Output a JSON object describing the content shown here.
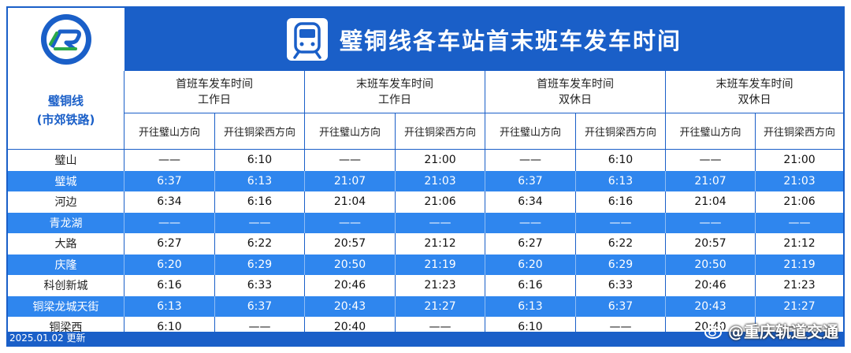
{
  "title": "璧铜线各车站首末班车发车时间",
  "line": {
    "name": "璧铜线",
    "sub": "(市郊铁路)"
  },
  "groups": [
    {
      "title": "首班车发车时间",
      "sub": "工作日"
    },
    {
      "title": "末班车发车时间",
      "sub": "工作日"
    },
    {
      "title": "首班车发车时间",
      "sub": "双休日"
    },
    {
      "title": "末班车发车时间",
      "sub": "双休日"
    }
  ],
  "directions": [
    "开往璧山方向",
    "开往铜梁西方向",
    "开往璧山方向",
    "开往铜梁西方向",
    "开往璧山方向",
    "开往铜梁西方向",
    "开往璧山方向",
    "开往铜梁西方向"
  ],
  "rows": [
    {
      "station": "璧山",
      "times": [
        "——",
        "6:10",
        "——",
        "21:00",
        "——",
        "6:10",
        "——",
        "21:00"
      ]
    },
    {
      "station": "璧城",
      "times": [
        "6:37",
        "6:13",
        "21:07",
        "21:03",
        "6:37",
        "6:13",
        "21:07",
        "21:03"
      ]
    },
    {
      "station": "河边",
      "times": [
        "6:34",
        "6:16",
        "21:04",
        "21:06",
        "6:34",
        "6:16",
        "21:04",
        "21:06"
      ]
    },
    {
      "station": "青龙湖",
      "times": [
        "——",
        "——",
        "——",
        "——",
        "——",
        "——",
        "——",
        "——"
      ]
    },
    {
      "station": "大路",
      "times": [
        "6:27",
        "6:22",
        "20:57",
        "21:12",
        "6:27",
        "6:22",
        "20:57",
        "21:12"
      ]
    },
    {
      "station": "庆隆",
      "times": [
        "6:20",
        "6:29",
        "20:50",
        "21:19",
        "6:20",
        "6:29",
        "20:50",
        "21:19"
      ]
    },
    {
      "station": "科创新城",
      "times": [
        "6:16",
        "6:33",
        "20:46",
        "21:23",
        "6:16",
        "6:33",
        "20:46",
        "21:23"
      ]
    },
    {
      "station": "铜梁龙城天街",
      "times": [
        "6:13",
        "6:37",
        "20:43",
        "21:27",
        "6:13",
        "6:37",
        "20:43",
        "21:27"
      ]
    },
    {
      "station": "铜梁西",
      "times": [
        "6:10",
        "——",
        "20:40",
        "——",
        "6:10",
        "——",
        "20:40",
        "——"
      ]
    }
  ],
  "update_date": "2025.01.02 更新",
  "watermark": "@重庆轨道交通",
  "icons": {
    "logo": "chongqing-rail-logo",
    "train": "train-icon",
    "weibo": "weibo-icon"
  },
  "colors": {
    "primary": "#1a5fc8",
    "row_alt": "#2f86ee",
    "logo_green": "#2aa84a"
  }
}
